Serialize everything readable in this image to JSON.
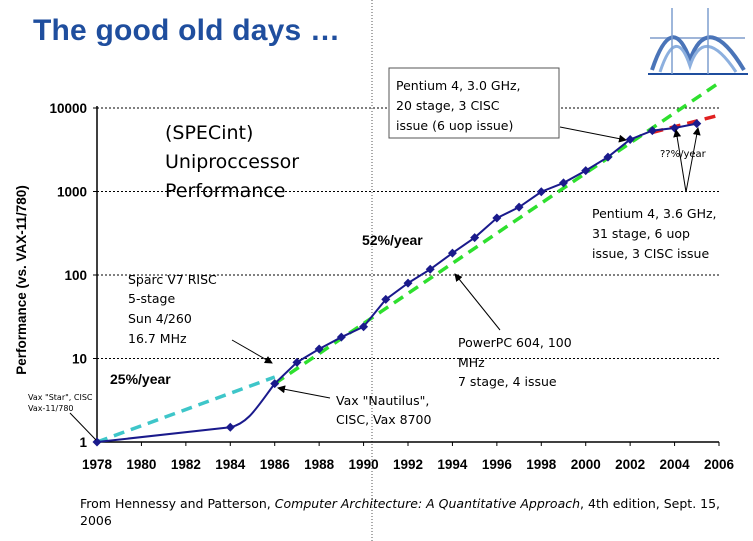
{
  "title": "The good old days …",
  "logo_icon": "bridge-arch-logo-icon",
  "citation": {
    "prefix": "From Hennessy and Patterson, ",
    "book": "Computer Architecture: A Quantitative Approach",
    "suffix": ", 4th edition, Sept. 15, 2006"
  },
  "chart_data": {
    "type": "line",
    "title": "(SPECint) Uniproccessor Performance",
    "title_lines": [
      "(SPECint)",
      "Uniproccessor",
      "Performance"
    ],
    "xlabel": "",
    "ylabel": "Performance (vs. VAX-11/780)",
    "y_scale": "log",
    "xlim": [
      1978,
      2006
    ],
    "ylim": [
      1,
      10000
    ],
    "x_ticks": [
      "1978",
      "1980",
      "1982",
      "1984",
      "1986",
      "1988",
      "1990",
      "1992",
      "1994",
      "1996",
      "1998",
      "2000",
      "2002",
      "2004",
      "2006"
    ],
    "y_ticks": [
      "1",
      "10",
      "100",
      "1000",
      "10000"
    ],
    "grid": "dotted horizontal at decades",
    "series": [
      {
        "name": "",
        "color": "#1a1a8c",
        "points": [
          [
            1978,
            1
          ],
          [
            1984,
            1.5
          ],
          [
            1986,
            5
          ],
          [
            1987,
            9
          ],
          [
            1988,
            13
          ],
          [
            1989,
            18
          ],
          [
            1990,
            24
          ],
          [
            1991,
            51
          ],
          [
            1992,
            80
          ],
          [
            1993,
            117
          ],
          [
            1994,
            183
          ],
          [
            1995,
            280
          ],
          [
            1996,
            481
          ],
          [
            1997,
            649
          ],
          [
            1998,
            993
          ],
          [
            1999,
            1267
          ],
          [
            2000,
            1779
          ],
          [
            2001,
            2584
          ],
          [
            2002,
            4195
          ],
          [
            2003,
            5364
          ],
          [
            2004,
            5764
          ],
          [
            2005,
            6505
          ]
        ]
      }
    ],
    "trend_lines": [
      {
        "label": "25%/year",
        "color": "#3ec6c9",
        "from": [
          1978,
          1
        ],
        "to": [
          1986,
          6
        ]
      },
      {
        "label": "52%/year",
        "color": "#2ee02e",
        "from": [
          1986,
          5
        ],
        "to": [
          2006,
          20000
        ]
      },
      {
        "label": "??%/year",
        "color": "#e02020",
        "from": [
          2003,
          5100
        ],
        "to": [
          2006,
          8200
        ]
      }
    ],
    "annotations": [
      {
        "lines": [
          "Vax \"Star\", CISC",
          "Vax-11/780"
        ]
      },
      {
        "lines": [
          "Sparc V7 RISC",
          "5-stage",
          "Sun 4/260",
          "16.7 MHz"
        ]
      },
      {
        "lines": [
          "Vax \"Nautilus\",",
          "CISC, Vax 8700"
        ]
      },
      {
        "lines": [
          "PowerPC 604, 100",
          "MHz",
          "7 stage, 4 issue"
        ]
      },
      {
        "lines": [
          "Pentium 4, 3.0 GHz,",
          "20 stage, 3 CISC",
          "issue (6 uop issue)"
        ]
      },
      {
        "lines": [
          "Pentium 4, 3.6 GHz,",
          "31 stage, 6 uop",
          "issue, 3 CISC issue"
        ]
      }
    ]
  }
}
